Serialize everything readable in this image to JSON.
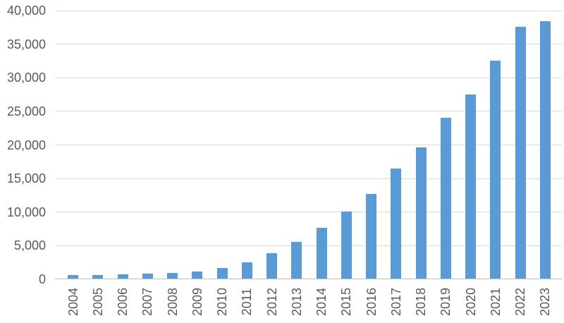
{
  "chart_data": {
    "type": "bar",
    "title": "",
    "xlabel": "",
    "ylabel": "",
    "categories": [
      "2004",
      "2005",
      "2006",
      "2007",
      "2008",
      "2009",
      "2010",
      "2011",
      "2012",
      "2013",
      "2014",
      "2015",
      "2016",
      "2017",
      "2018",
      "2019",
      "2020",
      "2021",
      "2022",
      "2023"
    ],
    "values": [
      500,
      500,
      600,
      700,
      800,
      1000,
      1600,
      2400,
      3800,
      5500,
      7600,
      10000,
      12600,
      16400,
      19500,
      23900,
      27400,
      32400,
      37500,
      38300
    ],
    "ylim": [
      0,
      40000
    ],
    "y_ticks": [
      0,
      5000,
      10000,
      15000,
      20000,
      25000,
      30000,
      35000,
      40000
    ],
    "y_tick_labels": [
      "0",
      "5,000",
      "10,000",
      "15,000",
      "20,000",
      "25,000",
      "30,000",
      "35,000",
      "40,000"
    ],
    "grid": "horizontal",
    "legend": "none",
    "colors": {
      "bar_fill": "#5b9bd5",
      "gridline": "#d9d9d9",
      "axis_line": "#bfbfbf",
      "tick_label": "#595959",
      "background": "#ffffff"
    }
  }
}
